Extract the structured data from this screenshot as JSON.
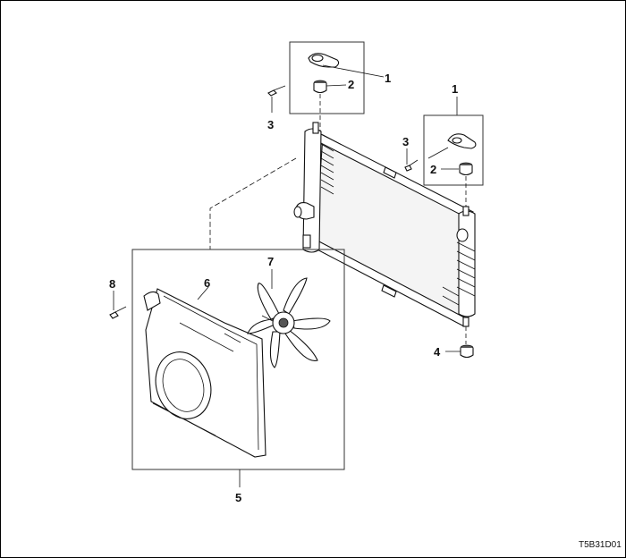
{
  "diagram": {
    "callouts": {
      "c1_top": "1",
      "c2_top": "2",
      "c3_top": "3",
      "c1_right": "1",
      "c3_right": "3",
      "c2_right": "2",
      "c4": "4",
      "c5": "5",
      "c6": "6",
      "c7": "7",
      "c8": "8"
    },
    "figure_code": "T5B31D01"
  }
}
